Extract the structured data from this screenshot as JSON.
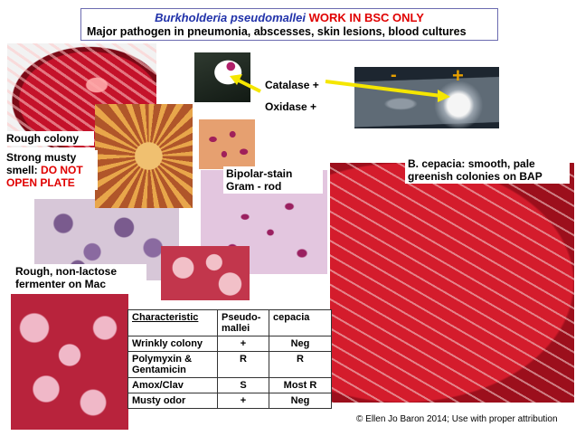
{
  "title": {
    "organism": "Burkholderia pseudomallei",
    "warning": "WORK IN BSC ONLY",
    "subtitle": "Major pathogen in pneumonia, abscesses, skin lesions, blood cultures"
  },
  "labels": {
    "rough_colony": "Rough colony",
    "musty_prefix": "Strong musty smell:",
    "musty_warning": "DO NOT OPEN PLATE",
    "catalase": "Catalase +",
    "oxidase": "Oxidase +",
    "bipolar_stain": "Bipolar-stain Gram - rod",
    "mac": "Rough, non-lactose fermenter on Mac",
    "b_cepacia": "B. cepacia: smooth, pale greenish colonies on BAP",
    "slide_minus": "-",
    "slide_plus": "+"
  },
  "table": {
    "headers": [
      "Characteristic",
      "Pseudo-mallei",
      "cepacia"
    ],
    "rows": [
      [
        "Wrinkly colony",
        "+",
        "Neg"
      ],
      [
        "Polymyxin & Gentamicin",
        "R",
        "R"
      ],
      [
        "Amox/Clav",
        "S",
        "Most  R"
      ],
      [
        "Musty odor",
        "+",
        "Neg"
      ]
    ]
  },
  "credit": "Ellen Jo Baron 2014; Use with proper attribution",
  "credit_symbol": "©",
  "colors": {
    "title_blue": "#2233aa",
    "warning_red": "#e00000",
    "arrow_yellow": "#f5e600",
    "slide_sign": "#e8a000"
  }
}
